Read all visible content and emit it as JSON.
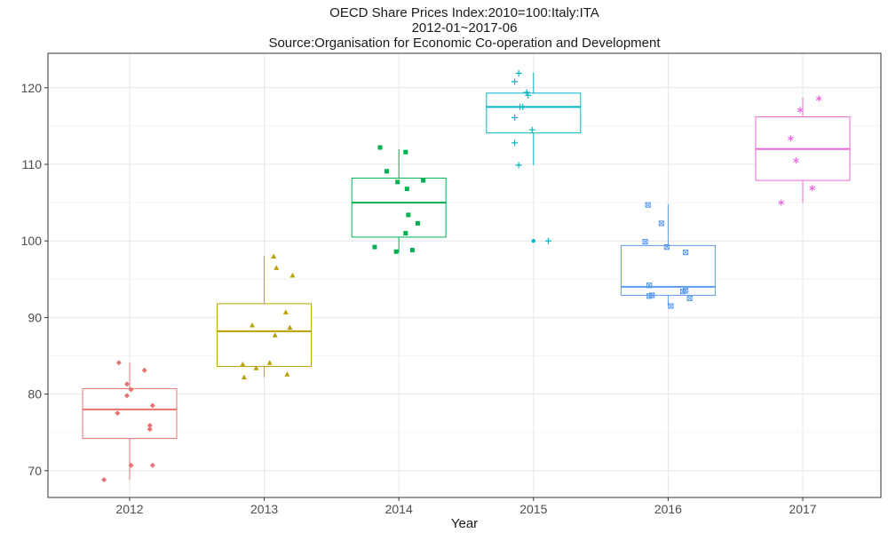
{
  "chart_data": {
    "type": "box",
    "title": "OECD Share Prices Index:2010=100:Italy:ITA",
    "subtitle": "2012-01~2017-06",
    "source": "Source:Organisation for Economic Co-operation and Development",
    "xlabel": "Year",
    "ylabel": "",
    "ylim": [
      66.5,
      124.5
    ],
    "yticks": [
      70,
      80,
      90,
      100,
      110,
      120
    ],
    "grid": true,
    "categories": [
      "2012",
      "2013",
      "2014",
      "2015",
      "2016",
      "2017"
    ],
    "colors": [
      "#E7726F",
      "#B8A000",
      "#00B050",
      "#00B5C4",
      "#5B9BF0",
      "#E769DB"
    ],
    "markers": [
      "diamond",
      "triangle",
      "square",
      "plus",
      "square-x",
      "asterisk"
    ],
    "boxes": [
      {
        "year": "2012",
        "whisker_low": 68.8,
        "q1": 74.2,
        "median": 78.0,
        "q3": 80.7,
        "whisker_high": 84.1
      },
      {
        "year": "2013",
        "whisker_low": 82.2,
        "q1": 83.6,
        "median": 88.2,
        "q3": 91.8,
        "whisker_high": 98.0
      },
      {
        "year": "2014",
        "whisker_low": 98.5,
        "q1": 100.5,
        "median": 105.0,
        "q3": 108.2,
        "whisker_high": 112.0
      },
      {
        "year": "2015",
        "whisker_low": 109.9,
        "q1": 114.1,
        "median": 117.5,
        "q3": 119.3,
        "whisker_high": 122.0
      },
      {
        "year": "2016",
        "whisker_low": 91.5,
        "q1": 92.9,
        "median": 94.0,
        "q3": 99.4,
        "whisker_high": 104.8
      },
      {
        "year": "2017",
        "whisker_low": 105.0,
        "q1": 107.9,
        "median": 112.0,
        "q3": 116.2,
        "whisker_high": 118.7
      }
    ],
    "outliers": [
      {
        "year": "2015",
        "value": 100.0
      }
    ],
    "points": [
      {
        "year": "2012",
        "offset": -0.08,
        "value": 84.1
      },
      {
        "year": "2012",
        "offset": 0.11,
        "value": 83.1
      },
      {
        "year": "2012",
        "offset": -0.02,
        "value": 81.3
      },
      {
        "year": "2012",
        "offset": 0.01,
        "value": 80.6
      },
      {
        "year": "2012",
        "offset": -0.02,
        "value": 79.8
      },
      {
        "year": "2012",
        "offset": -0.09,
        "value": 77.5
      },
      {
        "year": "2012",
        "offset": 0.17,
        "value": 78.5
      },
      {
        "year": "2012",
        "offset": 0.15,
        "value": 75.9
      },
      {
        "year": "2012",
        "offset": 0.15,
        "value": 75.4
      },
      {
        "year": "2012",
        "offset": 0.01,
        "value": 70.7
      },
      {
        "year": "2012",
        "offset": 0.17,
        "value": 70.7
      },
      {
        "year": "2012",
        "offset": -0.19,
        "value": 68.8
      },
      {
        "year": "2013",
        "offset": 0.07,
        "value": 98.0
      },
      {
        "year": "2013",
        "offset": 0.09,
        "value": 96.5
      },
      {
        "year": "2013",
        "offset": 0.21,
        "value": 95.5
      },
      {
        "year": "2013",
        "offset": 0.16,
        "value": 90.7
      },
      {
        "year": "2013",
        "offset": -0.09,
        "value": 89.0
      },
      {
        "year": "2013",
        "offset": 0.19,
        "value": 88.7
      },
      {
        "year": "2013",
        "offset": 0.08,
        "value": 87.7
      },
      {
        "year": "2013",
        "offset": -0.16,
        "value": 83.9
      },
      {
        "year": "2013",
        "offset": 0.04,
        "value": 84.1
      },
      {
        "year": "2013",
        "offset": -0.06,
        "value": 83.4
      },
      {
        "year": "2013",
        "offset": 0.17,
        "value": 82.6
      },
      {
        "year": "2013",
        "offset": -0.15,
        "value": 82.2
      },
      {
        "year": "2014",
        "offset": -0.14,
        "value": 112.2
      },
      {
        "year": "2014",
        "offset": 0.05,
        "value": 111.6
      },
      {
        "year": "2014",
        "offset": -0.09,
        "value": 109.1
      },
      {
        "year": "2014",
        "offset": -0.01,
        "value": 107.7
      },
      {
        "year": "2014",
        "offset": 0.18,
        "value": 107.9
      },
      {
        "year": "2014",
        "offset": 0.06,
        "value": 106.8
      },
      {
        "year": "2014",
        "offset": 0.07,
        "value": 103.4
      },
      {
        "year": "2014",
        "offset": 0.14,
        "value": 102.3
      },
      {
        "year": "2014",
        "offset": 0.05,
        "value": 101.0
      },
      {
        "year": "2014",
        "offset": -0.18,
        "value": 99.2
      },
      {
        "year": "2014",
        "offset": -0.02,
        "value": 98.6
      },
      {
        "year": "2014",
        "offset": 0.1,
        "value": 98.8
      },
      {
        "year": "2015",
        "offset": -0.11,
        "value": 121.9
      },
      {
        "year": "2015",
        "offset": -0.14,
        "value": 120.8
      },
      {
        "year": "2015",
        "offset": -0.05,
        "value": 119.4
      },
      {
        "year": "2015",
        "offset": -0.04,
        "value": 119.0
      },
      {
        "year": "2015",
        "offset": -0.1,
        "value": 117.5
      },
      {
        "year": "2015",
        "offset": -0.08,
        "value": 117.5
      },
      {
        "year": "2015",
        "offset": -0.14,
        "value": 116.1
      },
      {
        "year": "2015",
        "offset": -0.01,
        "value": 114.5
      },
      {
        "year": "2015",
        "offset": -0.14,
        "value": 112.8
      },
      {
        "year": "2015",
        "offset": -0.11,
        "value": 109.9
      },
      {
        "year": "2015",
        "offset": 0.11,
        "value": 100.0
      },
      {
        "year": "2016",
        "offset": -0.15,
        "value": 104.7
      },
      {
        "year": "2016",
        "offset": -0.05,
        "value": 102.3
      },
      {
        "year": "2016",
        "offset": -0.17,
        "value": 99.9
      },
      {
        "year": "2016",
        "offset": -0.01,
        "value": 99.2
      },
      {
        "year": "2016",
        "offset": 0.13,
        "value": 98.5
      },
      {
        "year": "2016",
        "offset": -0.14,
        "value": 94.2
      },
      {
        "year": "2016",
        "offset": 0.13,
        "value": 93.5
      },
      {
        "year": "2016",
        "offset": 0.11,
        "value": 93.4
      },
      {
        "year": "2016",
        "offset": -0.12,
        "value": 92.9
      },
      {
        "year": "2016",
        "offset": -0.14,
        "value": 92.8
      },
      {
        "year": "2016",
        "offset": 0.16,
        "value": 92.5
      },
      {
        "year": "2016",
        "offset": 0.02,
        "value": 91.5
      },
      {
        "year": "2017",
        "offset": 0.12,
        "value": 118.6
      },
      {
        "year": "2017",
        "offset": -0.02,
        "value": 117.1
      },
      {
        "year": "2017",
        "offset": -0.09,
        "value": 113.4
      },
      {
        "year": "2017",
        "offset": -0.05,
        "value": 110.5
      },
      {
        "year": "2017",
        "offset": 0.07,
        "value": 106.9
      },
      {
        "year": "2017",
        "offset": -0.16,
        "value": 105.0
      }
    ]
  }
}
